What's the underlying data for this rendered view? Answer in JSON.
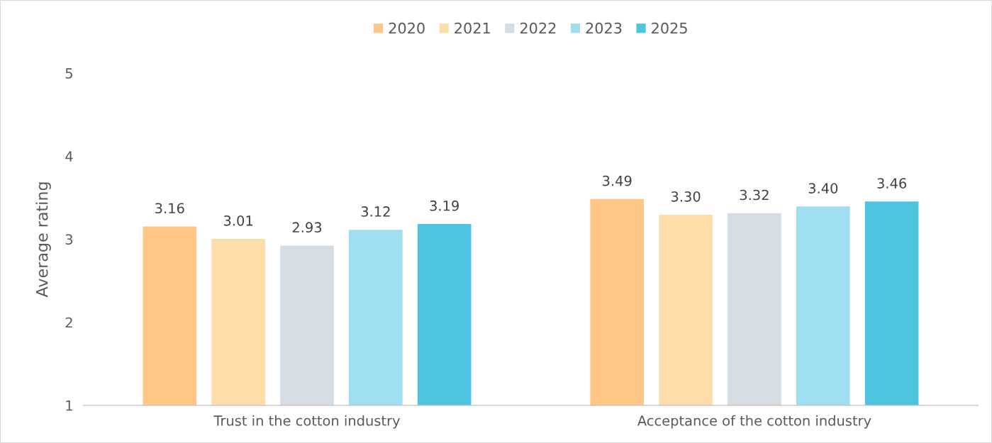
{
  "chart_data": {
    "type": "bar",
    "ylabel": "Average rating",
    "categories": [
      "Trust in the cotton industry",
      "Acceptance of the cotton industry"
    ],
    "series": [
      {
        "name": "2020",
        "color": "#ffc685",
        "values": [
          3.16,
          3.49
        ]
      },
      {
        "name": "2021",
        "color": "#ffddab",
        "values": [
          3.01,
          3.3
        ]
      },
      {
        "name": "2022",
        "color": "#d6dce4",
        "values": [
          2.93,
          3.32
        ]
      },
      {
        "name": "2023",
        "color": "#9fdef0",
        "values": [
          3.12,
          3.4
        ]
      },
      {
        "name": "2025",
        "color": "#4dc3e0",
        "values": [
          3.19,
          3.46
        ]
      }
    ],
    "value_labels": [
      [
        "3.16",
        "3.49"
      ],
      [
        "3.01",
        "3.30"
      ],
      [
        "2.93",
        "3.32"
      ],
      [
        "3.12",
        "3.40"
      ],
      [
        "3.19",
        "3.46"
      ]
    ],
    "ylim": [
      1,
      5
    ],
    "yticks": [
      1,
      2,
      3,
      4,
      5
    ],
    "grid": false,
    "legend": "top"
  }
}
